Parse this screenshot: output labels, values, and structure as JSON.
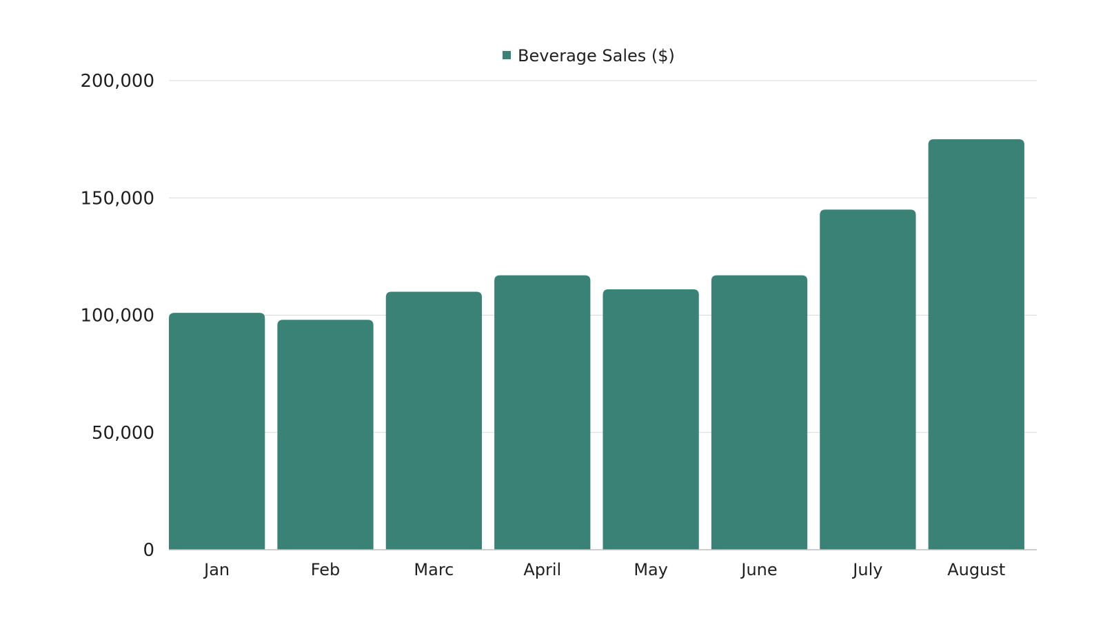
{
  "chart_data": {
    "type": "bar",
    "legend": [
      "Beverage Sales ($)"
    ],
    "legend_position": "top-center",
    "categories": [
      "Jan",
      "Feb",
      "Marc",
      "April",
      "May",
      "June",
      "July",
      "August"
    ],
    "series": [
      {
        "name": "Beverage Sales ($)",
        "values": [
          101000,
          98000,
          110000,
          117000,
          111000,
          117000,
          145000,
          175000
        ]
      }
    ],
    "yticks": [
      0,
      50000,
      100000,
      150000,
      200000
    ],
    "ytick_labels": [
      "0",
      "50,000",
      "100,000",
      "150,000",
      "200,000"
    ],
    "ylim": [
      0,
      200000
    ],
    "grid": true,
    "colors": {
      "bar": "#3b8276",
      "legend_marker": "#3b8276"
    }
  }
}
